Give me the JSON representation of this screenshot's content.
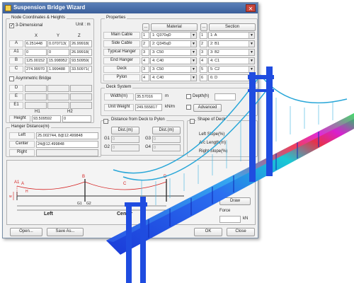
{
  "window": {
    "title": "Suspension Bridge Wizard",
    "close_glyph": "✕"
  },
  "node_coords": {
    "group_title": "Node Coordinates & Heights",
    "unit_label": "Unit : m",
    "three_dim_label": "3-Dimensional",
    "three_dim_checked": true,
    "columns": [
      "X",
      "Y",
      "Z"
    ],
    "rows": [
      {
        "label": "A",
        "x": "6.251448",
        "y": "0.070713(",
        "z": "26.99918("
      },
      {
        "label": "A1",
        "x": "0",
        "y": "0",
        "z": "26.99918("
      },
      {
        "label": "B",
        "x": "125.00152",
        "y": "15.998952",
        "z": "93.50959("
      },
      {
        "label": "C",
        "x": "274.99970",
        "y": "1.999488",
        "z": "33.50971("
      }
    ],
    "asymmetric_label": "Asymmetric Bridge",
    "asym_rows": [
      "D",
      "E",
      "E1"
    ],
    "h_columns": [
      "H1",
      "H2"
    ],
    "height_label": "Height",
    "height_h1": "93.509592",
    "height_h2": "0"
  },
  "hanger": {
    "group_title": "Hanger Distance(m)",
    "left_label": "Left",
    "left_value": "25.002744, 8@12.499848",
    "center_label": "Center",
    "center_value": "24@12.499848",
    "right_label": "Right",
    "right_value": ""
  },
  "properties": {
    "group_title": "Properties",
    "material_header": "Material",
    "section_header": "Section",
    "dots": "...",
    "rows": [
      {
        "label": "Main Cable",
        "mat_no": "1",
        "mat": "1: Q370qD",
        "sec_no": "1",
        "sec": "1: A"
      },
      {
        "label": "Side Cable",
        "mat_no": "2",
        "mat": "2: Q345qD",
        "sec_no": "2",
        "sec": "2: B1"
      },
      {
        "label": "Typical Hanger",
        "mat_no": "3",
        "mat": "3: C50",
        "sec_no": "3",
        "sec": "3: B2"
      },
      {
        "label": "End Hanger",
        "mat_no": "4",
        "mat": "4: C40",
        "sec_no": "4",
        "sec": "4: C1"
      },
      {
        "label": "Deck",
        "mat_no": "3",
        "mat": "3: C50",
        "sec_no": "5",
        "sec": "5: C2"
      },
      {
        "label": "Pylon",
        "mat_no": "4",
        "mat": "4: C40",
        "sec_no": "6",
        "sec": "6: D"
      }
    ]
  },
  "deck_system": {
    "group_title": "Deck System",
    "width_label": "Width(m)",
    "width_value": "35.57016",
    "width_unit": "m",
    "weight_label": "Unit Weight",
    "weight_value": "249.555817",
    "weight_unit": "kN/m",
    "depth_label": "Depth(h)",
    "advanced_label": "Advanced"
  },
  "distance_pylon": {
    "group_title": "Distance from Deck to Pylon",
    "dist_header": "Dist.(m)",
    "rows_left": [
      {
        "label": "G1",
        "value": "0"
      },
      {
        "label": "G2",
        "value": "0"
      }
    ],
    "rows_right": [
      {
        "label": "G3",
        "value": "0"
      },
      {
        "label": "G4",
        "value": "0"
      }
    ]
  },
  "shape_deck": {
    "title": "Shape of Deck",
    "left_slope": "Left Slope(%)",
    "arc_length": "Arc Length(m)",
    "right_slope": "Right Slope(%)"
  },
  "diagram": {
    "labels": {
      "a1": "A1",
      "a": "A",
      "b": "B",
      "c": "C",
      "d": "D",
      "h": "H",
      "w": "w",
      "g1": "G1",
      "g2": "G2",
      "left": "Left",
      "center": "Center",
      "draw": "Draw",
      "force": "Force",
      "kn": "kN"
    }
  },
  "footer": {
    "open_label": "Open...",
    "save_label": "Save As...",
    "ok_label": "OK",
    "close_label": "Close"
  },
  "colors": {
    "accent_red": "#d42020",
    "title_blue": "#3b5f9a"
  }
}
